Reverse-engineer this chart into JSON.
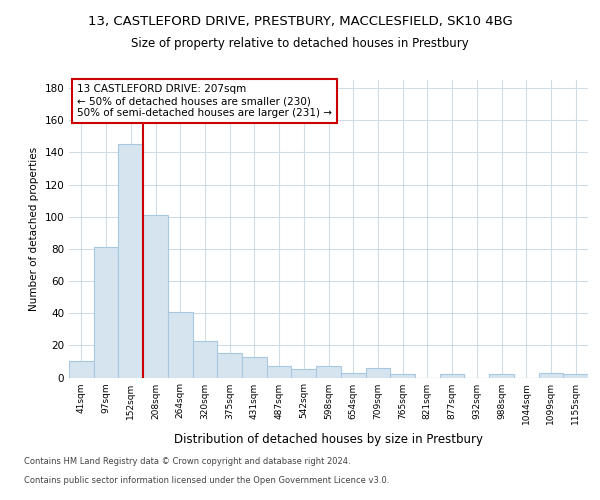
{
  "title1": "13, CASTLEFORD DRIVE, PRESTBURY, MACCLESFIELD, SK10 4BG",
  "title2": "Size of property relative to detached houses in Prestbury",
  "xlabel": "Distribution of detached houses by size in Prestbury",
  "ylabel": "Number of detached properties",
  "categories": [
    "41sqm",
    "97sqm",
    "152sqm",
    "208sqm",
    "264sqm",
    "320sqm",
    "375sqm",
    "431sqm",
    "487sqm",
    "542sqm",
    "598sqm",
    "654sqm",
    "709sqm",
    "765sqm",
    "821sqm",
    "877sqm",
    "932sqm",
    "988sqm",
    "1044sqm",
    "1099sqm",
    "1155sqm"
  ],
  "values": [
    10,
    81,
    145,
    101,
    41,
    23,
    15,
    13,
    7,
    5,
    7,
    3,
    6,
    2,
    0,
    2,
    0,
    2,
    0,
    3,
    2
  ],
  "bar_color": "#d6e4f0",
  "bar_edge_color": "#a8c8e0",
  "annotation_text_line1": "13 CASTLEFORD DRIVE: 207sqm",
  "annotation_text_line2": "← 50% of detached houses are smaller (230)",
  "annotation_text_line3": "50% of semi-detached houses are larger (231) →",
  "annotation_box_color": "#ffffff",
  "annotation_box_edge_color": "#cc0000",
  "red_line_after_bar": 2,
  "ylim": [
    0,
    185
  ],
  "yticks": [
    0,
    20,
    40,
    60,
    80,
    100,
    120,
    140,
    160,
    180
  ],
  "footer1": "Contains HM Land Registry data © Crown copyright and database right 2024.",
  "footer2": "Contains public sector information licensed under the Open Government Licence v3.0.",
  "bg_color": "#ffffff",
  "plot_bg_color": "#ffffff",
  "grid_color": "#d0dce8",
  "title_fontsize": 9.5,
  "subtitle_fontsize": 8.5
}
